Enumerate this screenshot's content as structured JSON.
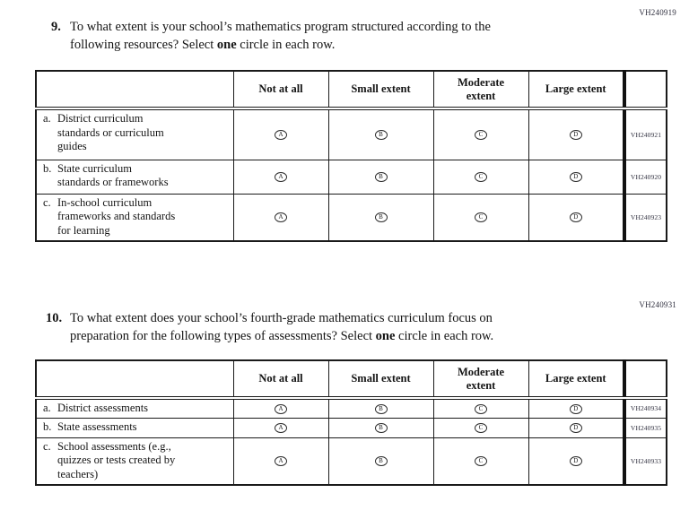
{
  "colors": {
    "page_background": "#ffffff",
    "text": "#141414",
    "table_border": "#1a1a1a",
    "code_text": "#30303f"
  },
  "questions": [
    {
      "id_code": "VH240919",
      "number": "9.",
      "stem_line1": "To what extent is your school’s mathematics program structured according to the",
      "stem_line2_before": "following resources? Select ",
      "stem_line2_bold": "one",
      "stem_line2_after": " circle in each row.",
      "table": {
        "column_headers": [
          "Not at all",
          "Small extent",
          "Moderate extent",
          "Large extent"
        ],
        "option_letters": [
          "A",
          "B",
          "C",
          "D"
        ],
        "rows": [
          {
            "prefix": "a.",
            "label": "District curriculum standards or curriculum guides",
            "label_lines": [
              "District curriculum",
              "standards or curriculum",
              "guides"
            ],
            "code": "VH240921"
          },
          {
            "prefix": "b.",
            "label": "State curriculum standards or frameworks",
            "label_lines": [
              "State curriculum",
              "standards or frameworks"
            ],
            "code": "VH240920"
          },
          {
            "prefix": "c.",
            "label": "In-school curriculum frameworks and standards for learning",
            "label_lines": [
              "In-school curriculum",
              "frameworks and standards",
              "for learning"
            ],
            "code": "VH240923"
          }
        ]
      }
    },
    {
      "id_code": "VH240931",
      "number": "10.",
      "stem_line1": "To what extent does your school’s fourth-grade mathematics curriculum focus on",
      "stem_line2_before": "preparation for the following types of assessments? Select ",
      "stem_line2_bold": "one",
      "stem_line2_after": " circle in each row.",
      "table": {
        "column_headers": [
          "Not at all",
          "Small extent",
          "Moderate extent",
          "Large extent"
        ],
        "option_letters": [
          "A",
          "B",
          "C",
          "D"
        ],
        "rows": [
          {
            "prefix": "a.",
            "label": "District assessments",
            "label_lines": [
              "District assessments"
            ],
            "code": "VH240934"
          },
          {
            "prefix": "b.",
            "label": "State assessments",
            "label_lines": [
              "State assessments"
            ],
            "code": "VH240935"
          },
          {
            "prefix": "c.",
            "label": "School assessments (e.g., quizzes or tests created by teachers)",
            "label_lines": [
              "School assessments (e.g.,",
              "quizzes or tests created by",
              "teachers)"
            ],
            "code": "VH240933"
          }
        ]
      }
    }
  ]
}
